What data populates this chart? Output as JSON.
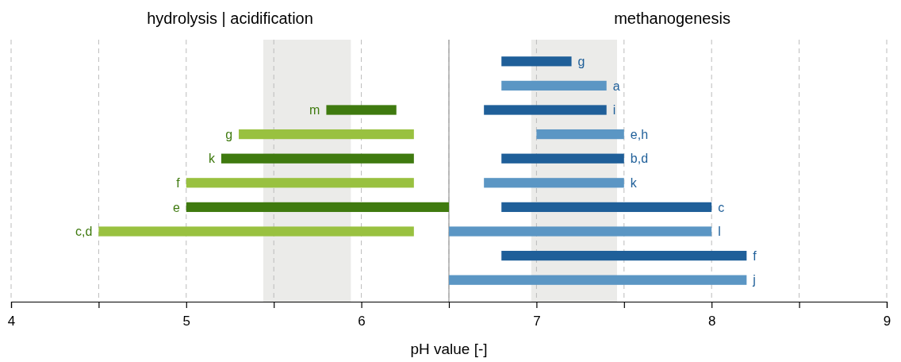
{
  "chart_data": {
    "type": "bar",
    "orientation": "horizontal",
    "xlabel": "pH value [-]",
    "annotations": [
      "hydrolysis | acidification",
      "methanogenesis"
    ],
    "categories": [
      null,
      null,
      null,
      null,
      null,
      null,
      null,
      null,
      null,
      null
    ],
    "series": [
      {
        "color": "#3f7a0f",
        "colors": [
          null,
          null,
          "#3f7a0f",
          "#99c140",
          "#3f7a0f",
          "#99c140",
          "#3f7a0f",
          "#99c140",
          null,
          null
        ],
        "base": [
          null,
          null,
          5.8,
          5.3,
          5.2,
          5.0,
          5.0,
          4.5,
          null,
          null
        ],
        "values": [
          null,
          null,
          0.4,
          1.0,
          1.1,
          1.3,
          1.5,
          1.8,
          null,
          null
        ],
        "value_labels": [
          null,
          null,
          "m",
          "g",
          "k",
          "f",
          "e",
          "c,d",
          null,
          null
        ]
      },
      {
        "color": "#1f5f99",
        "colors": [
          "#1f5f99",
          "#5b96c4",
          "#1f5f99",
          "#5b96c4",
          "#1f5f99",
          "#5b96c4",
          "#1f5f99",
          "#5b96c4",
          "#1f5f99",
          "#5b96c4"
        ],
        "base": [
          6.8,
          6.8,
          6.7,
          7.0,
          6.8,
          6.7,
          6.8,
          6.5,
          6.8,
          6.5
        ],
        "values": [
          0.4,
          0.6,
          0.7,
          0.5,
          0.7,
          0.8,
          1.2,
          1.5,
          1.4,
          1.7
        ],
        "value_labels": [
          "g",
          "a",
          "i",
          "e,h",
          "b,d",
          "k",
          "c",
          "l",
          "f",
          "j"
        ]
      }
    ],
    "xlim": [
      4,
      9
    ],
    "xticks": [
      4,
      {
        "value": 4.5,
        "label": null
      },
      5,
      {
        "value": 5.5,
        "label": null
      },
      6,
      {
        "value": 6.5,
        "label": null
      },
      7,
      {
        "value": 7.5,
        "label": null
      },
      8,
      {
        "value": 8.5,
        "label": null
      },
      9
    ],
    "grid": "x",
    "tick_labels": "x",
    "ref_lines": [
      {
        "axis": "x",
        "value": 6.5,
        "color": "#aaaaaa",
        "line_style": "solid"
      }
    ],
    "bands": [
      {
        "axis": "x",
        "from": 5.44,
        "to": 5.94,
        "color": "#ebebe9"
      },
      {
        "axis": "x",
        "from": 6.97,
        "to": 7.46,
        "color": "#ebebe9"
      }
    ]
  }
}
